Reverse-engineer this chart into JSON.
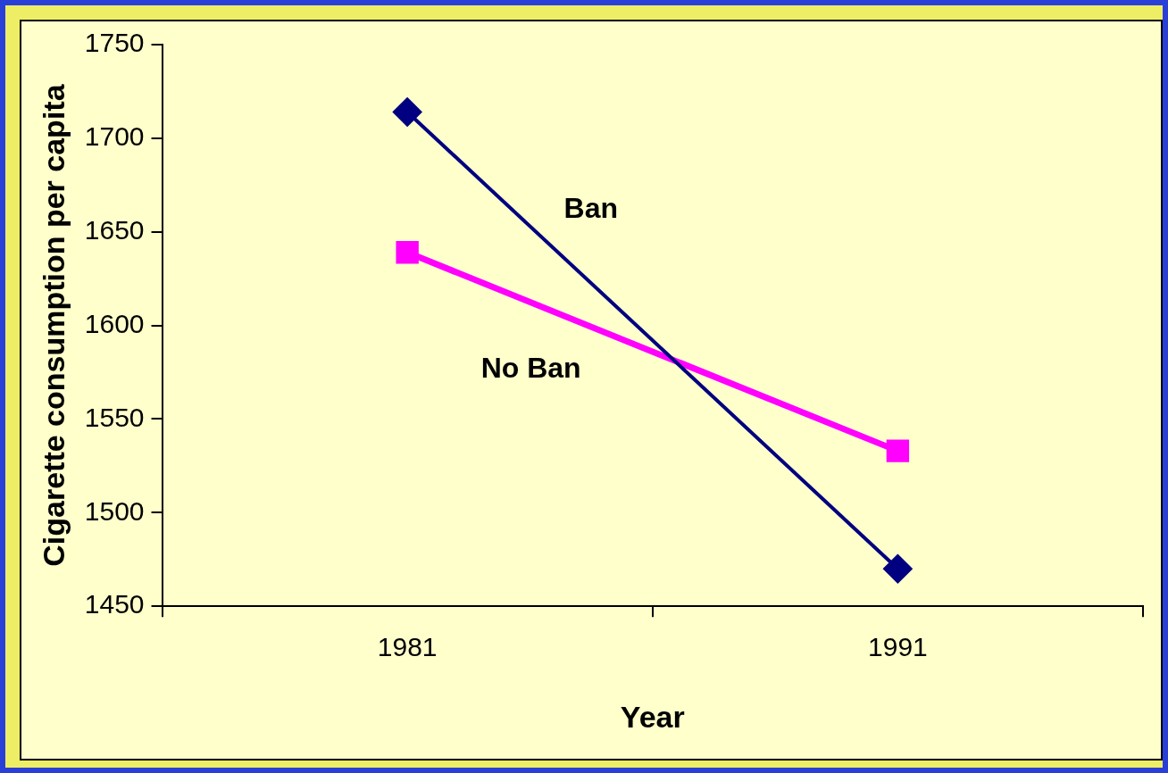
{
  "chart_data": {
    "type": "line",
    "xlabel": "Year",
    "ylabel": "Cigarette consumption per capita",
    "categories": [
      "1981",
      "1991"
    ],
    "series": [
      {
        "name": "Ban",
        "color": "#000080",
        "marker": "diamond",
        "values": [
          1714,
          1470
        ]
      },
      {
        "name": "No Ban",
        "color": "#ff00ff",
        "marker": "square",
        "values": [
          1639,
          1533
        ]
      }
    ],
    "ylim": [
      1450,
      1750
    ],
    "yticks": [
      1450,
      1500,
      1550,
      1600,
      1650,
      1700,
      1750
    ],
    "grid": false,
    "legend": false,
    "line_style": "solid"
  }
}
